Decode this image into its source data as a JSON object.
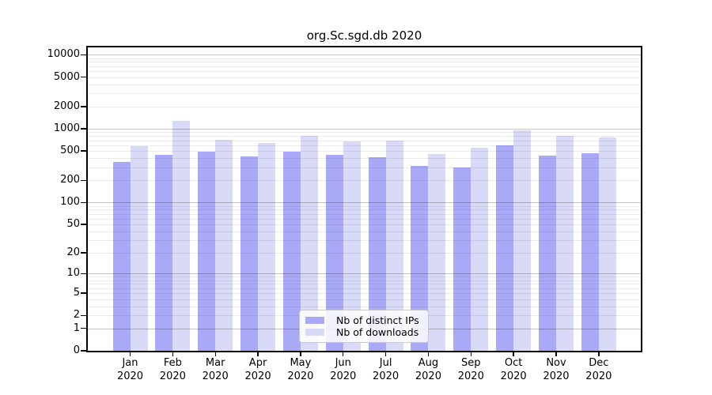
{
  "window": {
    "background": "#ffffff"
  },
  "chart_data": {
    "type": "bar",
    "title": "org.Sc.sgd.db 2020",
    "categories": [
      "Jan",
      "Feb",
      "Mar",
      "Apr",
      "May",
      "Jun",
      "Jul",
      "Aug",
      "Sep",
      "Oct",
      "Nov",
      "Dec"
    ],
    "x_tick_second_line": "2020",
    "series": [
      {
        "name": "Nb of distinct IPs",
        "color": "#a9a9f8",
        "values": [
          354,
          442,
          492,
          418,
          490,
          442,
          408,
          312,
          297,
          604,
          434,
          461
        ]
      },
      {
        "name": "Nb of downloads",
        "color": "#d9d9f8",
        "values": [
          580,
          1285,
          711,
          640,
          798,
          683,
          693,
          456,
          556,
          955,
          805,
          772
        ]
      }
    ],
    "y_scale": "log1p",
    "ylim": [
      0,
      12600
    ],
    "y_ticks": [
      0,
      1,
      2,
      5,
      10,
      20,
      50,
      100,
      200,
      500,
      1000,
      2000,
      5000,
      10000
    ],
    "grid": {
      "major_lines": [
        1,
        10,
        100,
        1000,
        10000
      ],
      "minor_lines_per_decade": [
        2,
        3,
        4,
        5,
        6,
        7,
        8,
        9
      ],
      "drawn_over_bars": true
    },
    "legend": {
      "position": "bottom-center"
    }
  },
  "colors": {
    "bar_distinct_ips": "#a9a9f8",
    "bar_downloads": "#d9d9f8",
    "grid_major": "rgba(0,0,0,0.24)",
    "grid_minor": "rgba(0,0,0,0.08)",
    "axis_spine": "#000000",
    "legend_border": "#c9c9c9"
  }
}
